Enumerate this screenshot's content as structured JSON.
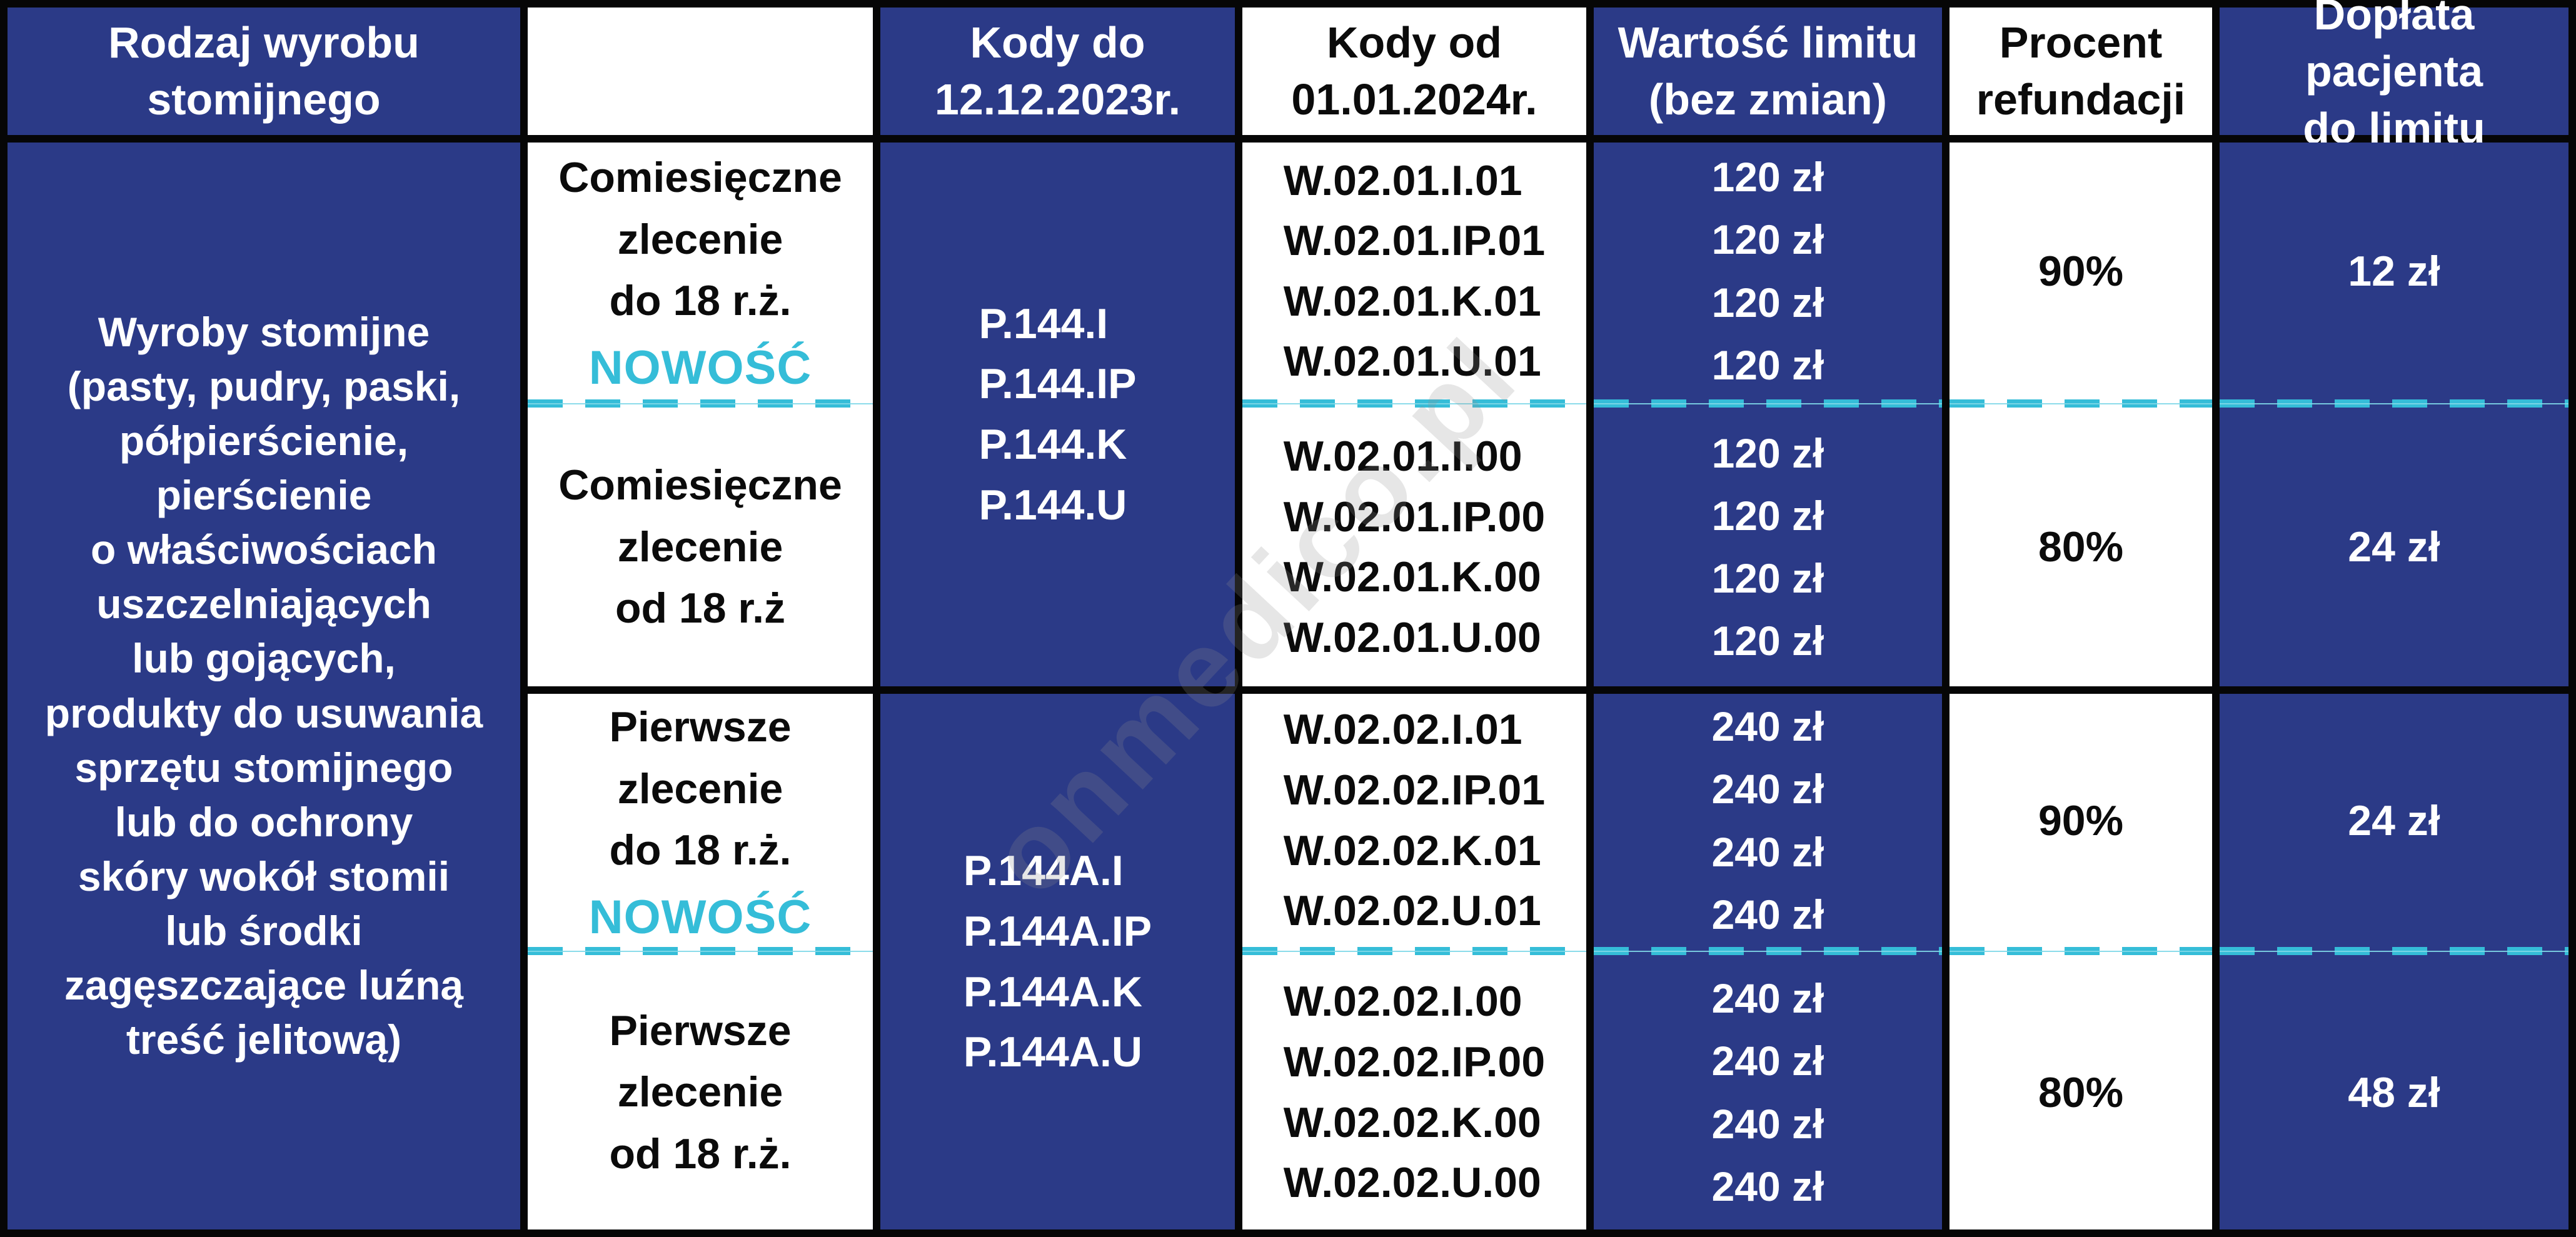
{
  "colors": {
    "navy": "#2b3a87",
    "cyan": "#35bdd8",
    "border_black": "#060606",
    "white": "#ffffff"
  },
  "watermark": "onmedico.pl",
  "header": {
    "product": "Rodzaj wyrobu\nstomijnego",
    "empty": "",
    "codes_old": "Kody do\n12.12.2023r.",
    "codes_new": "Kody od\n01.01.2024r.",
    "limit": "Wartość limitu\n(bez zmian)",
    "refund": "Procent\nrefundacji",
    "copay": "Dopłata pacjenta\ndo limitu"
  },
  "product_cell": "Wyroby stomijne\n(pasty, pudry, paski,\npółpierścienie,\npierścienie\no właściwościach\nuszczelniających\nlub gojących,\nprodukty do usuwania\nsprzętu stomijnego\nlub do ochrony\nskóry wokół stomii\nlub środki\nzagęszczające luźną\ntreść jelitową)",
  "sections": [
    {
      "codes_old": [
        "P.144.I",
        "P.144.IP",
        "P.144.K",
        "P.144.U"
      ],
      "top": {
        "label": "Comiesięczne\nzlecenie\ndo 18 r.ż.",
        "badge": "NOWOŚĆ",
        "codes_new": [
          "W.02.01.I.01",
          "W.02.01.IP.01",
          "W.02.01.K.01",
          "W.02.01.U.01"
        ],
        "limits": [
          "120 zł",
          "120 zł",
          "120 zł",
          "120 zł"
        ],
        "refund": "90%",
        "copay": "12 zł"
      },
      "bottom": {
        "label": "Comiesięczne\nzlecenie\nod 18 r.ż",
        "codes_new": [
          "W.02.01.I.00",
          "W.02.01.IP.00",
          "W.02.01.K.00",
          "W.02.01.U.00"
        ],
        "limits": [
          "120 zł",
          "120 zł",
          "120 zł",
          "120 zł"
        ],
        "refund": "80%",
        "copay": "24 zł"
      }
    },
    {
      "codes_old": [
        "P.144A.I",
        "P.144A.IP",
        "P.144A.K",
        "P.144A.U"
      ],
      "top": {
        "label": "Pierwsze\nzlecenie\ndo 18 r.ż.",
        "badge": "NOWOŚĆ",
        "codes_new": [
          "W.02.02.I.01",
          "W.02.02.IP.01",
          "W.02.02.K.01",
          "W.02.02.U.01"
        ],
        "limits": [
          "240 zł",
          "240 zł",
          "240 zł",
          "240 zł"
        ],
        "refund": "90%",
        "copay": "24 zł"
      },
      "bottom": {
        "label": "Pierwsze\nzlecenie\nod 18 r.ż.",
        "codes_new": [
          "W.02.02.I.00",
          "W.02.02.IP.00",
          "W.02.02.K.00",
          "W.02.02.U.00"
        ],
        "limits": [
          "240 zł",
          "240 zł",
          "240 zł",
          "240 zł"
        ],
        "refund": "80%",
        "copay": "48 zł"
      }
    }
  ]
}
